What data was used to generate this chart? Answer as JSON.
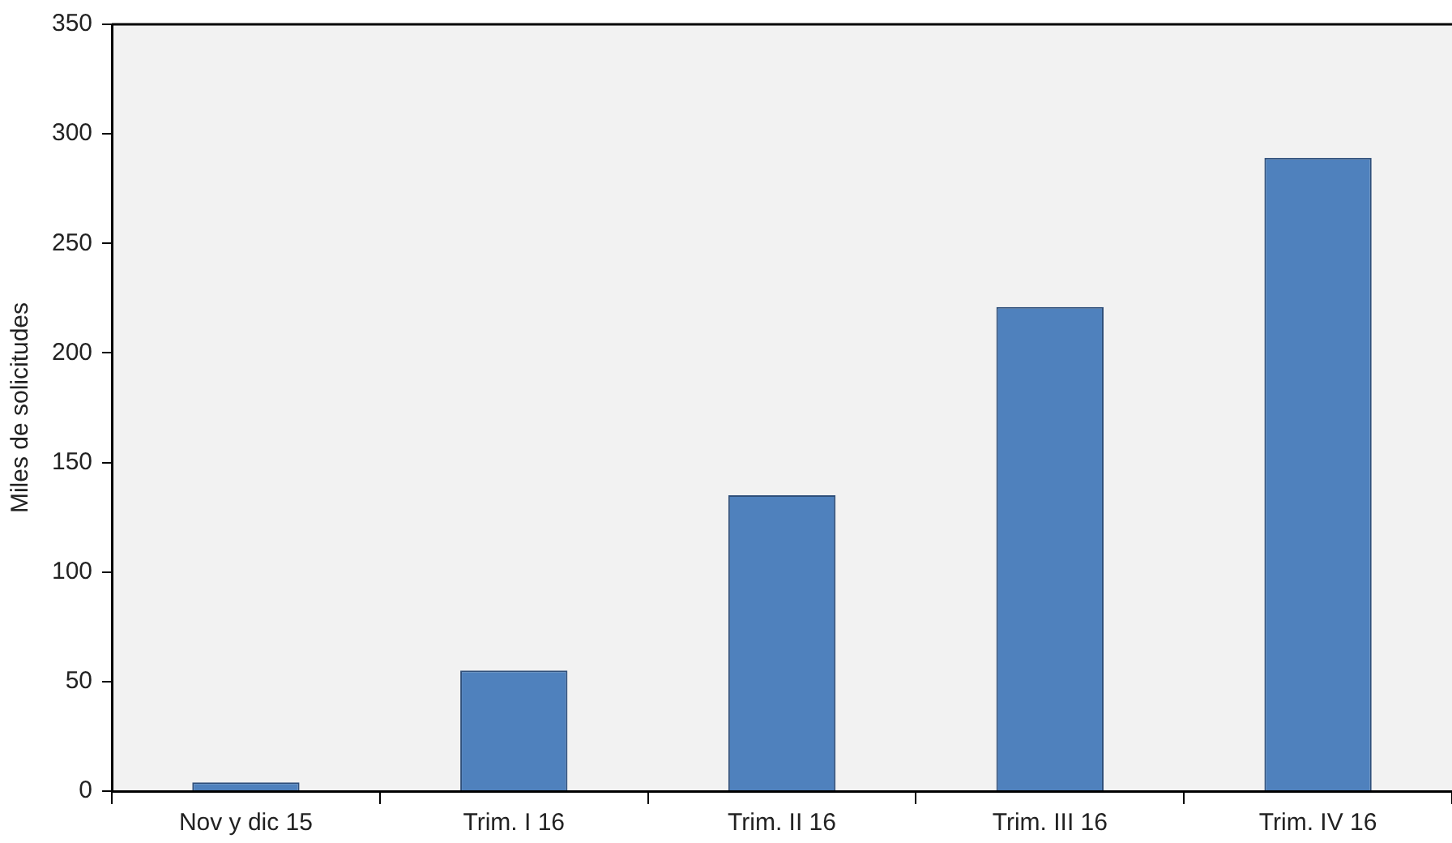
{
  "chart_data": {
    "type": "bar",
    "ylabel": "Miles de solicitudes",
    "categories": [
      "Nov y dic 15",
      "Trim. I 16",
      "Trim. II 16",
      "Trim. III 16",
      "Trim. IV 16"
    ],
    "values": [
      4,
      55,
      135,
      221,
      289
    ],
    "color": "#4f81bd",
    "ylim": [
      0,
      350
    ],
    "yticks": [
      0,
      50,
      100,
      150,
      200,
      250,
      300,
      350
    ],
    "grid": false,
    "legend": false
  }
}
